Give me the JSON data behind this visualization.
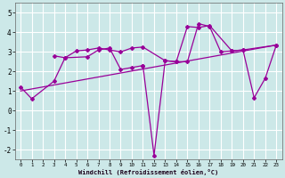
{
  "xlabel": "Windchill (Refroidissement éolien,°C)",
  "background_color": "#cce8e8",
  "grid_color": "#ffffff",
  "line_color": "#990099",
  "ylim": [
    -2.5,
    5.5
  ],
  "xlim": [
    -0.5,
    23.5
  ],
  "yticks": [
    -2,
    -1,
    0,
    1,
    2,
    3,
    4,
    5
  ],
  "xticks": [
    0,
    1,
    2,
    3,
    4,
    5,
    6,
    7,
    8,
    9,
    10,
    11,
    12,
    13,
    14,
    15,
    16,
    17,
    18,
    19,
    20,
    21,
    22,
    23
  ],
  "series1_x": [
    0,
    1,
    3,
    4,
    6,
    7,
    8,
    9,
    10,
    11
  ],
  "series1_y": [
    1.2,
    0.6,
    1.5,
    2.7,
    2.75,
    3.1,
    3.2,
    2.1,
    2.2,
    2.3
  ],
  "series2_x": [
    3,
    4,
    5,
    6,
    7,
    8,
    9,
    10,
    11,
    13,
    14,
    15,
    16,
    17,
    19,
    20,
    23
  ],
  "series2_y": [
    2.8,
    2.7,
    3.05,
    3.1,
    3.2,
    3.1,
    3.0,
    3.2,
    3.25,
    2.55,
    2.5,
    4.3,
    4.25,
    4.35,
    3.05,
    3.1,
    3.35
  ],
  "series3_x": [
    11,
    12,
    13,
    14,
    15,
    16,
    17,
    18,
    19,
    20,
    21,
    22,
    23
  ],
  "series3_y": [
    2.3,
    -2.3,
    2.55,
    2.5,
    2.5,
    4.45,
    4.3,
    3.0,
    3.05,
    3.1,
    0.65,
    1.65,
    3.35
  ],
  "trend_x": [
    0,
    23
  ],
  "trend_y": [
    1.0,
    3.35
  ]
}
